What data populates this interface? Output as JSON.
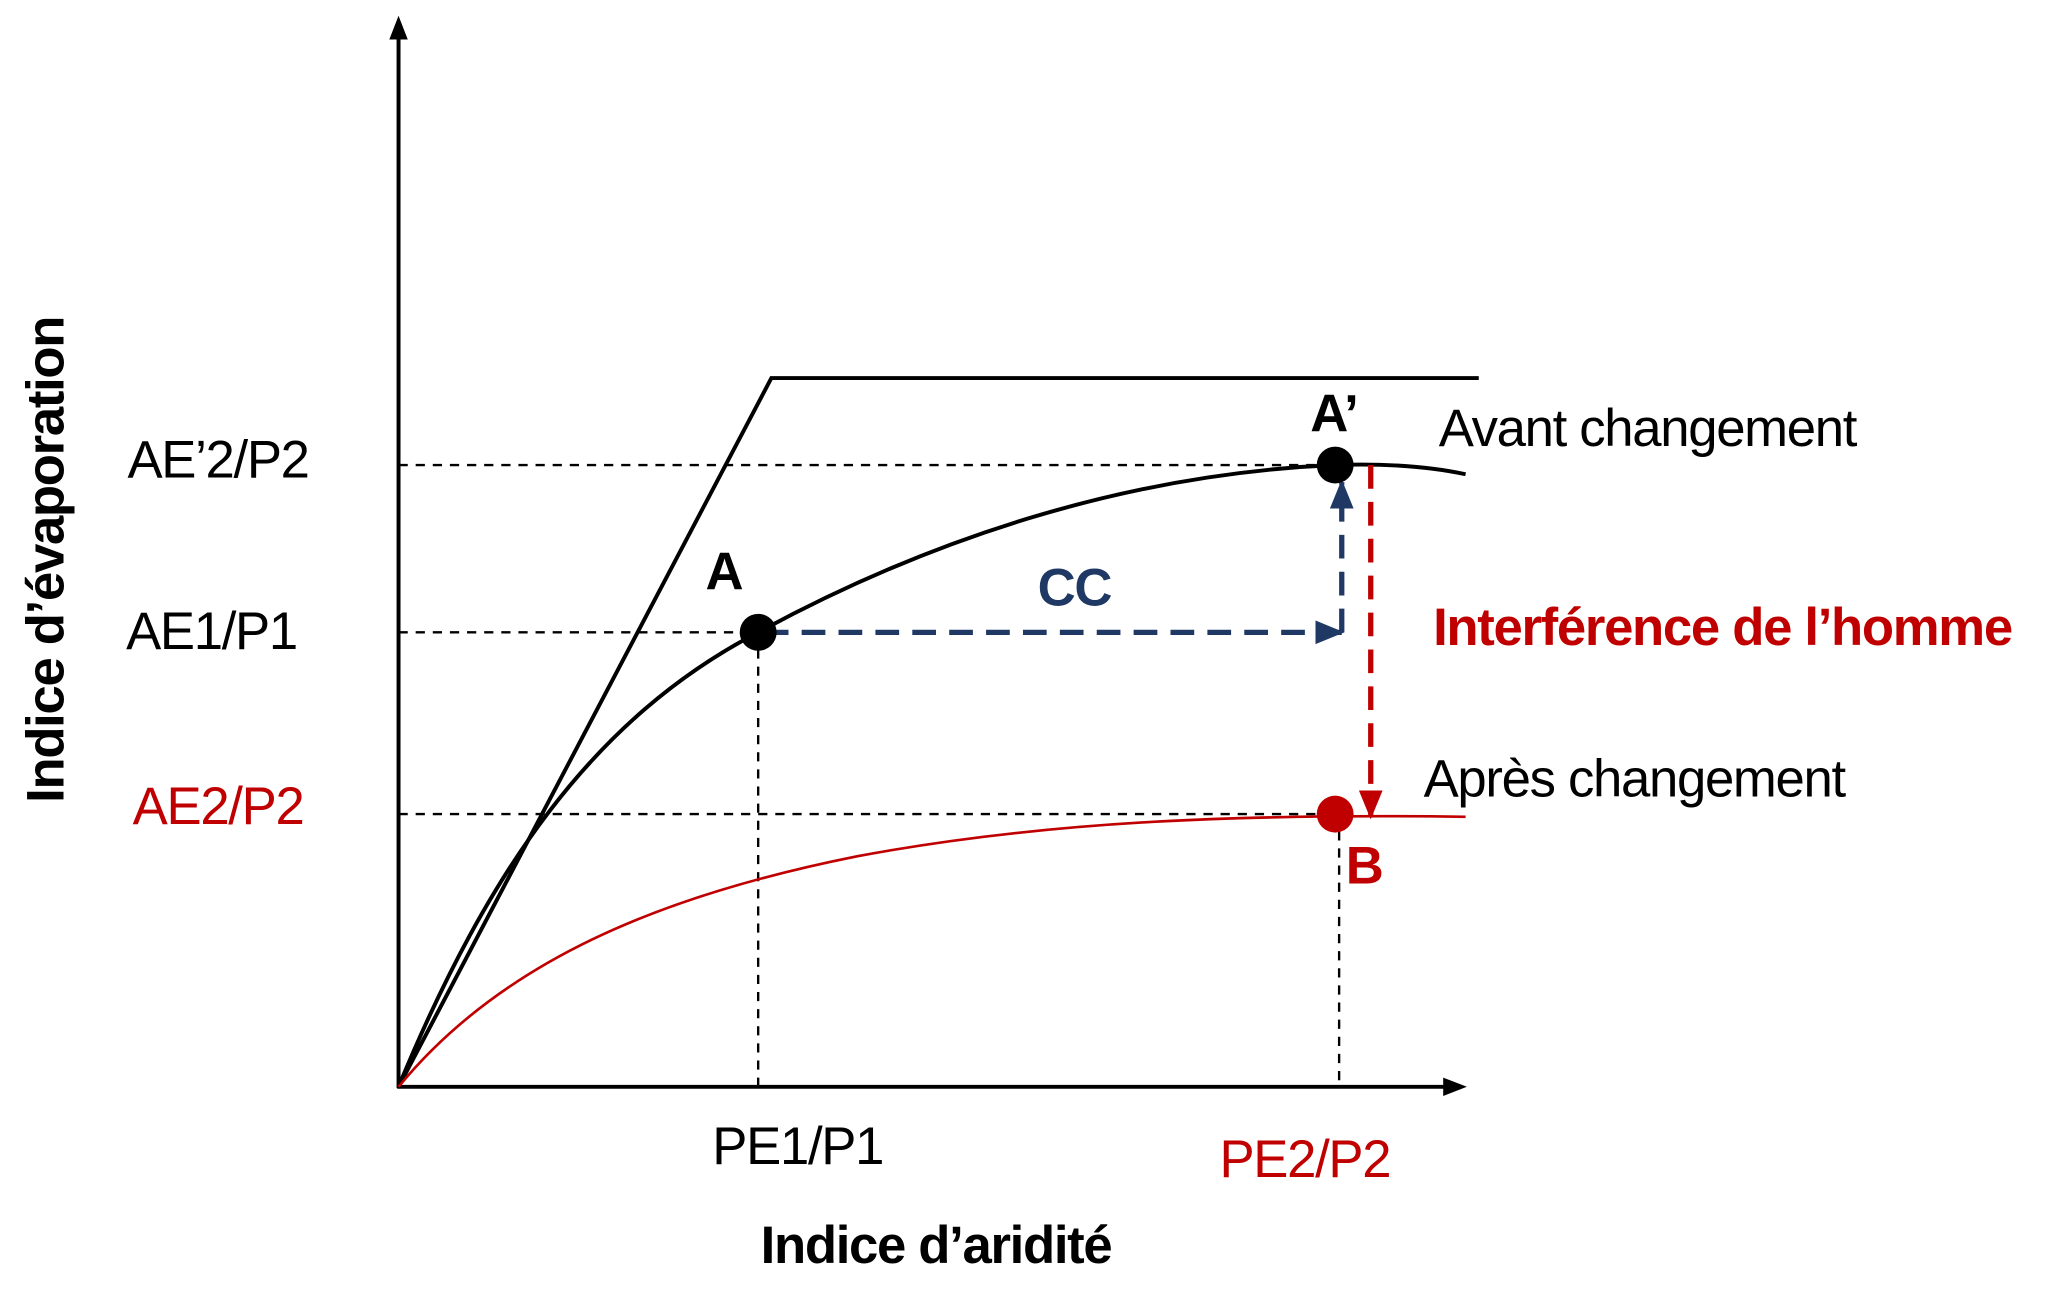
{
  "axes": {
    "x_label": "Indice d’aridité",
    "y_label": "Indice d’évaporation"
  },
  "y_ticks": [
    "AE’2/P2",
    "AE1/P1",
    "AE2/P2"
  ],
  "x_ticks": [
    "PE1/P1",
    "PE2/P2"
  ],
  "points": [
    "A",
    "A’",
    "B"
  ],
  "curves": {
    "before": "Avant changement",
    "after": "Après changement"
  },
  "annotations": {
    "climate_change": "CC",
    "human": "Interférence de l’homme"
  }
}
